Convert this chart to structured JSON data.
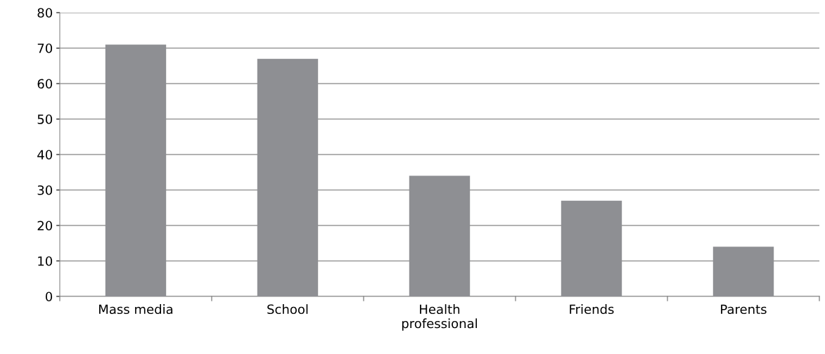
{
  "chart_data": {
    "type": "bar",
    "categories": [
      "Mass media",
      "School",
      "Health\nprofessional",
      "Friends",
      "Parents"
    ],
    "values": [
      71,
      67,
      34,
      27,
      14
    ],
    "color": "#8e8f93",
    "ylim": [
      0,
      80
    ],
    "yticks": [
      0,
      10,
      20,
      30,
      40,
      50,
      60,
      70,
      80
    ],
    "grid": "y",
    "legend": false
  }
}
